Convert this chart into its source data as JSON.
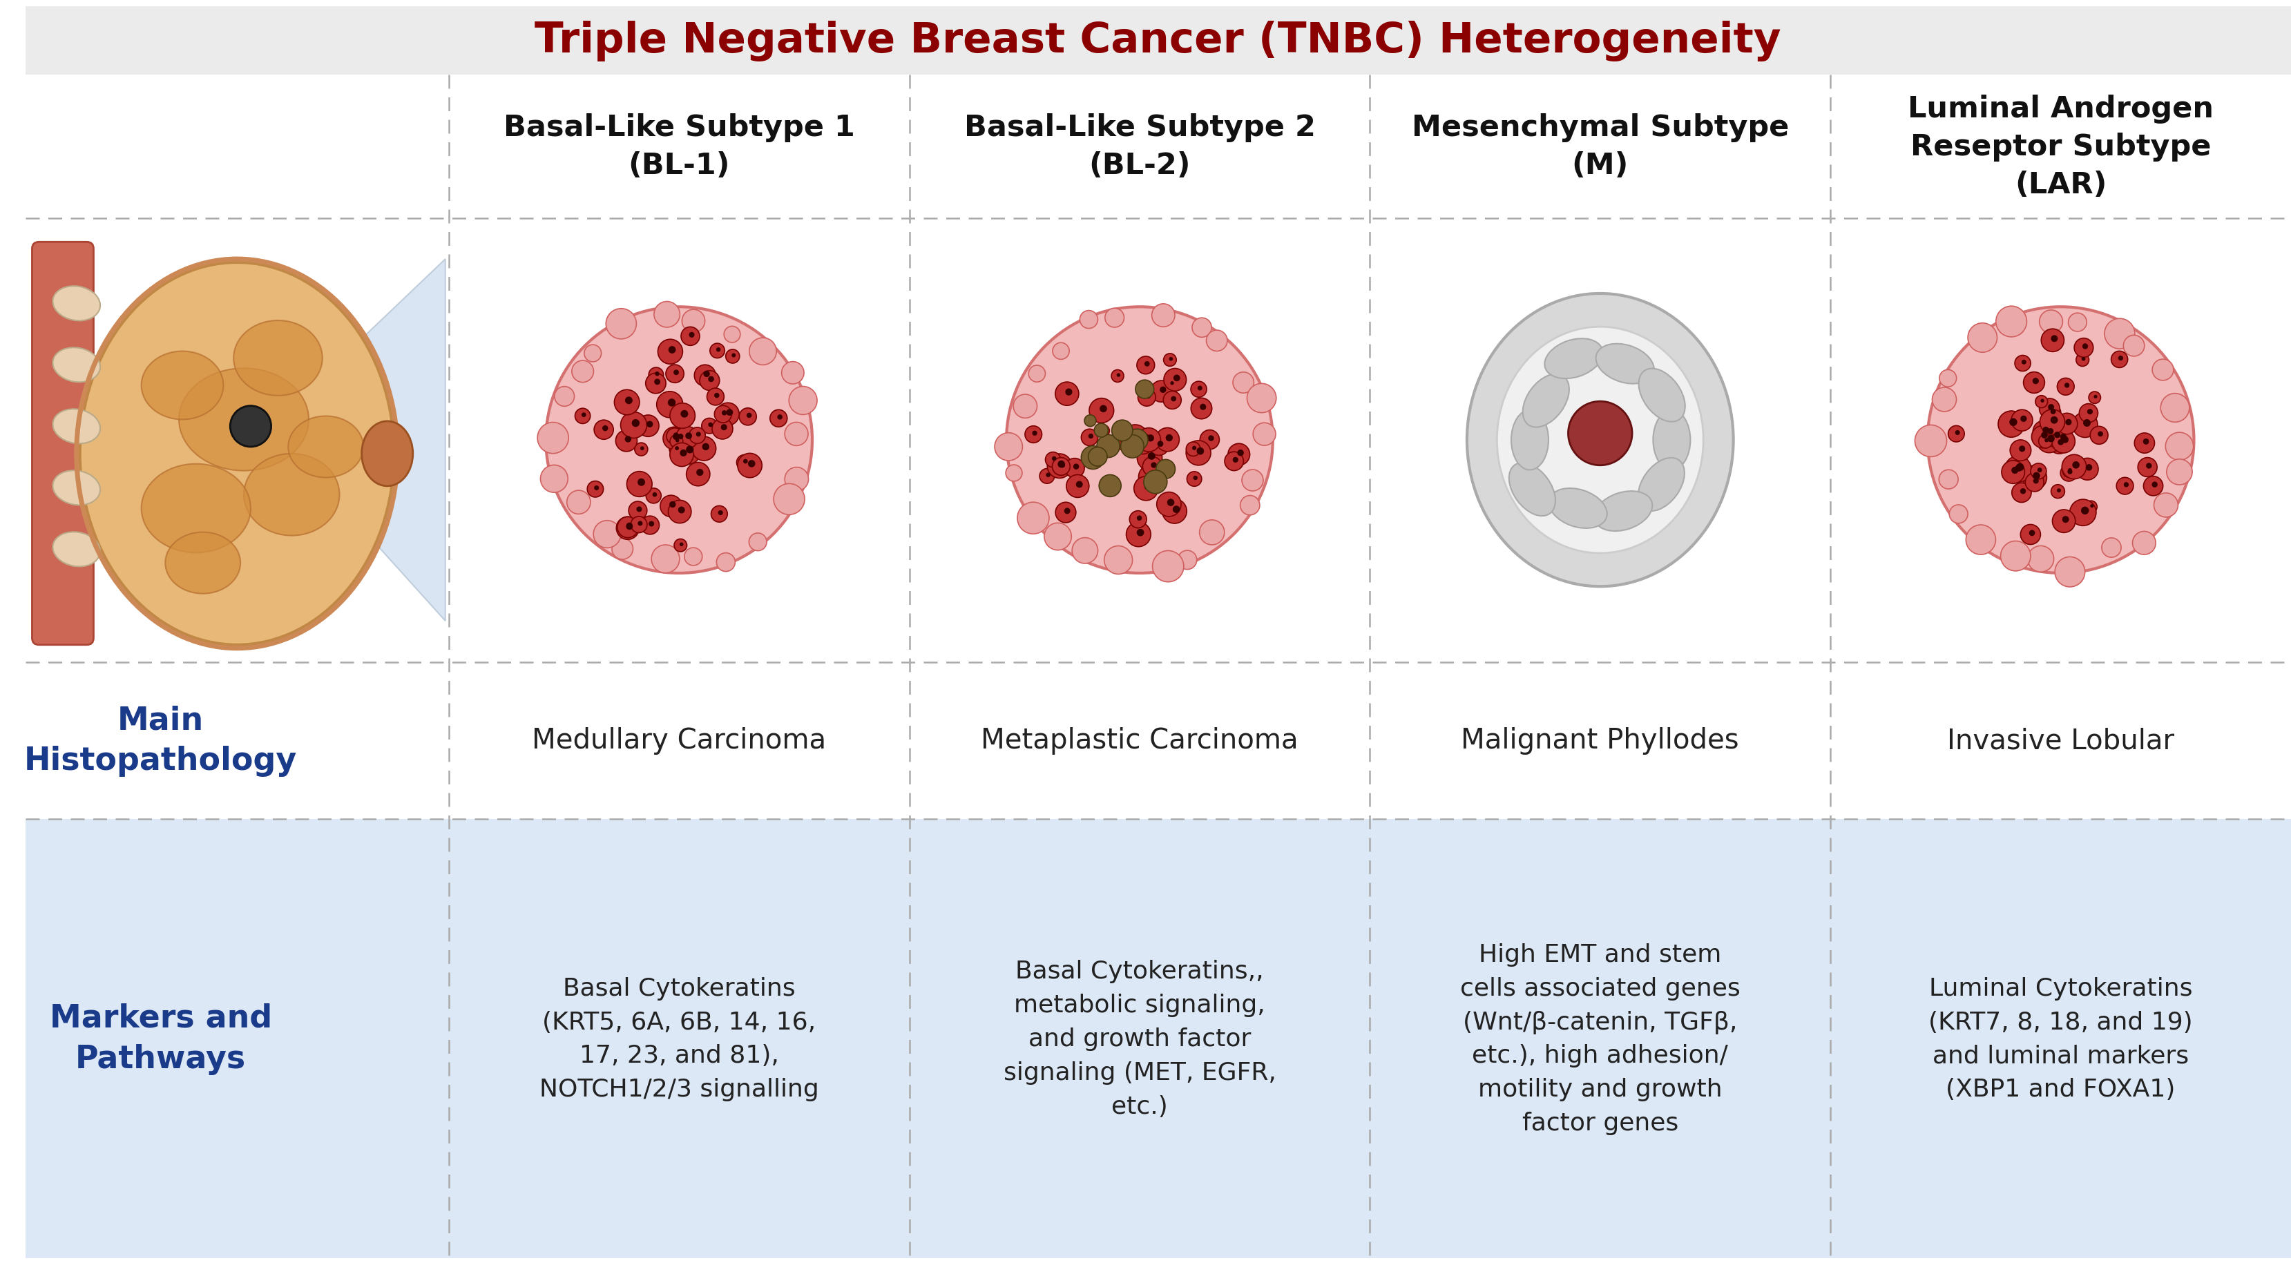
{
  "title": "Triple Negative Breast Cancer (TNBC) Heterogeneity",
  "title_color": "#8B0000",
  "title_bg": "#EBEBEB",
  "background_color": "#FFFFFF",
  "col_bg_light": "#DCE8F5",
  "subtypes": [
    {
      "name": "Basal-Like Subtype 1\n(BL-1)",
      "histopathology": "Medullary Carcinoma",
      "markers": "Basal Cytokeratins\n(KRT5, 6A, 6B, 14, 16,\n17, 23, and 81),\nNOTCH1/2/3 signalling"
    },
    {
      "name": "Basal-Like Subtype 2\n(BL-2)",
      "histopathology": "Metaplastic Carcinoma",
      "markers": "Basal Cytokeratins,,\nmetabolic signaling,\nand growth factor\nsignaling (MET, EGFR,\netc.)"
    },
    {
      "name": "Mesenchymal Subtype\n(M)",
      "histopathology": "Malignant Phyllodes",
      "markers": "High EMT and stem\ncells associated genes\n(Wnt/β-catenin, TGFβ,\netc.), high adhesion/\nmotility and growth\nfactor genes"
    },
    {
      "name": "Luminal Androgen\nReseptor Subtype\n(LAR)",
      "histopathology": "Invasive Lobular",
      "markers": "Luminal Cytokeratins\n(KRT7, 8, 18, and 19)\nand luminal markers\n(XBP1 and FOXA1)"
    }
  ],
  "row_labels": [
    "Main\nHistopathology",
    "Markers and\nPathways"
  ],
  "row_label_color": "#1a3a8a",
  "dashed_color": "#AAAAAA",
  "header_text_color": "#111111",
  "body_text_color": "#222222"
}
